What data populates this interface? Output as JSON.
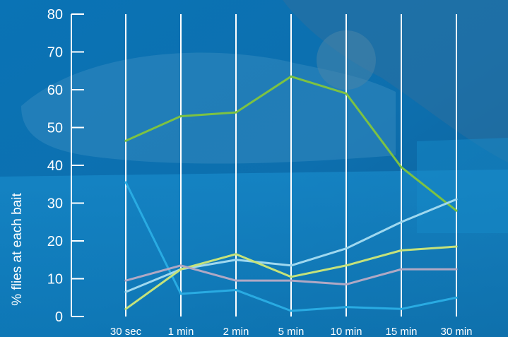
{
  "chart_data": {
    "type": "line",
    "title": "",
    "xlabel": "",
    "ylabel": "% flies at each bait",
    "categories": [
      "30 sec",
      "1 min",
      "2 min",
      "5 min",
      "10 min",
      "15 min",
      "30 min"
    ],
    "ylim": [
      0,
      80
    ],
    "yticks": [
      0,
      10,
      20,
      30,
      40,
      50,
      60,
      70,
      80
    ],
    "grid": "vertical",
    "legend": "none",
    "series": [
      {
        "color": "#7dc242",
        "values": [
          46.5,
          53,
          54,
          63.5,
          59,
          39.5,
          28
        ]
      },
      {
        "color": "#29abe2",
        "values": [
          35.5,
          6,
          7,
          1.5,
          2.5,
          2,
          5
        ]
      },
      {
        "color": "#9fd8ef",
        "values": [
          6.5,
          12.5,
          15,
          13.5,
          18,
          25,
          31
        ]
      },
      {
        "color": "#c5e27a",
        "values": [
          2,
          12.5,
          16.5,
          10.5,
          13.5,
          17.5,
          18.5
        ]
      },
      {
        "color": "#b0a8c4",
        "values": [
          9.5,
          13.5,
          9.5,
          9.5,
          8.5,
          12.5,
          12.5
        ]
      }
    ]
  }
}
